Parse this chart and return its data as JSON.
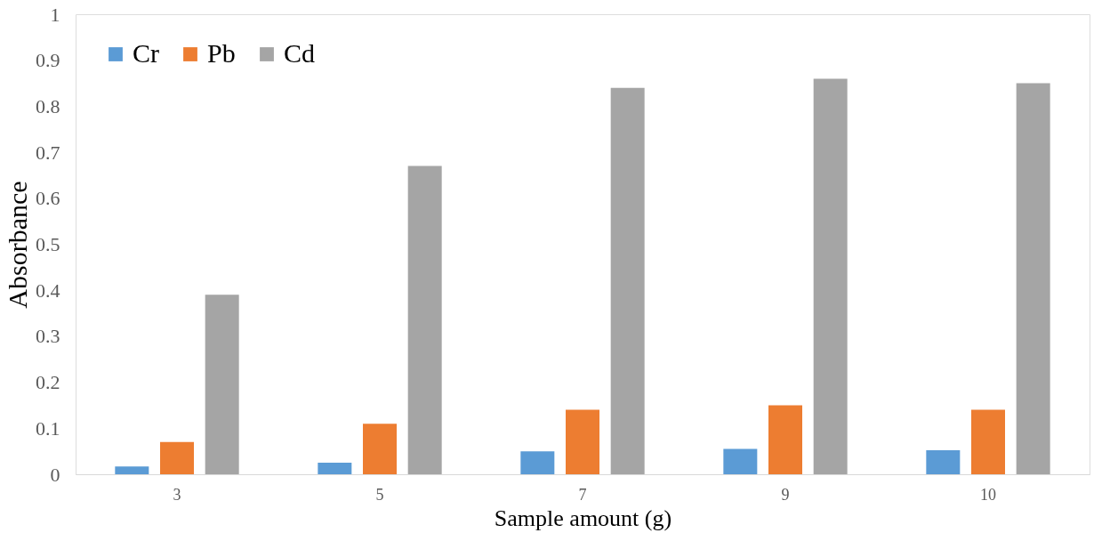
{
  "chart_data": {
    "type": "bar",
    "xlabel": "Sample amount (g)",
    "ylabel": "Absorbance",
    "categories": [
      "3",
      "5",
      "7",
      "9",
      "10"
    ],
    "series": [
      {
        "name": "Cr",
        "color": "#5b9bd5",
        "values": [
          0.017,
          0.025,
          0.05,
          0.055,
          0.052
        ]
      },
      {
        "name": "Pb",
        "color": "#ed7d31",
        "values": [
          0.07,
          0.11,
          0.14,
          0.15,
          0.14
        ]
      },
      {
        "name": "Cd",
        "color": "#a5a5a5",
        "values": [
          0.39,
          0.67,
          0.84,
          0.86,
          0.85
        ]
      }
    ],
    "ylim": [
      0,
      1
    ],
    "yticks": [
      0,
      0.1,
      0.2,
      0.3,
      0.4,
      0.5,
      0.6,
      0.7,
      0.8,
      0.9,
      1
    ],
    "grid": false,
    "legend": "top left"
  }
}
